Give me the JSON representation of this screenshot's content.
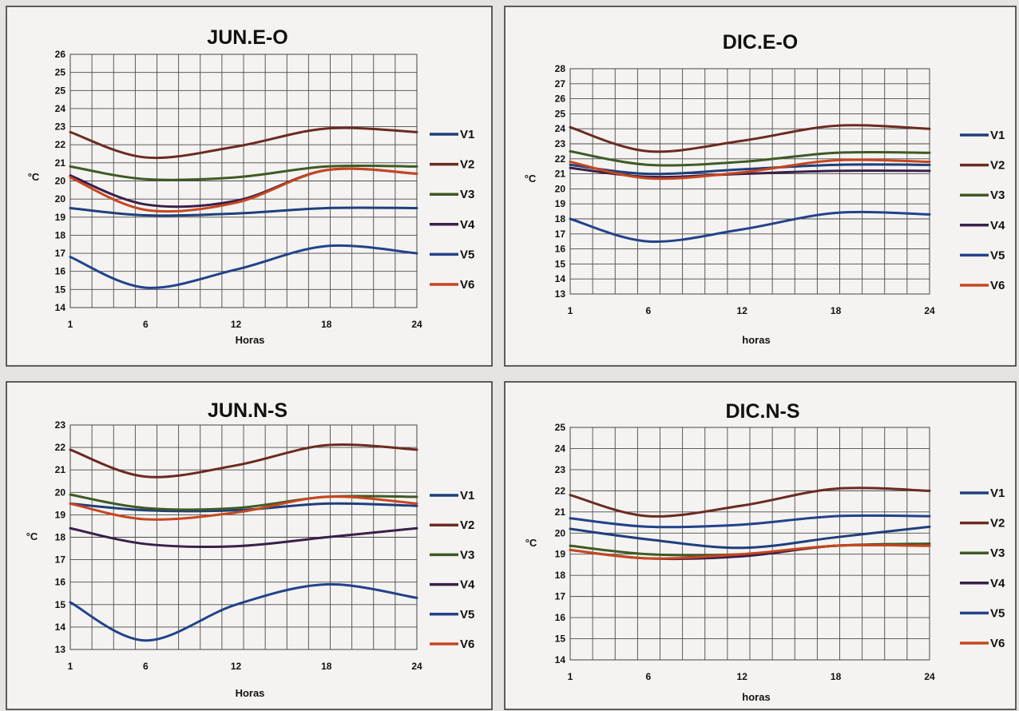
{
  "chart_data": [
    {
      "type": "line",
      "title": "JUN.E-O",
      "xlabel": "Horas",
      "ylabel": "°C",
      "ylim": [
        14,
        26
      ],
      "ytick_labels": [
        "14",
        "15",
        "16",
        "17",
        "18",
        "19",
        "20",
        "20",
        "21",
        "22",
        "23",
        "24",
        "25",
        "25",
        "26"
      ],
      "xlim": [
        1,
        24
      ],
      "xticks": [
        1,
        6,
        12,
        18,
        24
      ],
      "x": [
        1,
        6,
        12,
        18,
        24
      ],
      "grid": true,
      "legend_position": "right",
      "series": [
        {
          "name": "V1",
          "color": "#1f3f7c",
          "values": [
            19.5,
            19.1,
            19.2,
            19.5,
            19.5
          ]
        },
        {
          "name": "V2",
          "color": "#6b2a22",
          "values": [
            22.7,
            21.3,
            21.9,
            22.9,
            22.7
          ]
        },
        {
          "name": "V3",
          "color": "#3f5a24",
          "values": [
            20.8,
            20.1,
            20.2,
            20.8,
            20.8
          ]
        },
        {
          "name": "V4",
          "color": "#3a1f4a",
          "values": [
            20.3,
            19.7,
            19.9,
            20.6,
            20.4
          ]
        },
        {
          "name": "V5",
          "color": "#22428a",
          "values": [
            16.8,
            15.1,
            16.1,
            17.4,
            17.0
          ]
        },
        {
          "name": "V6",
          "color": "#c8461e",
          "values": [
            20.2,
            19.4,
            19.8,
            20.6,
            20.4
          ]
        }
      ]
    },
    {
      "type": "line",
      "title": "DIC.E-O",
      "xlabel": "horas",
      "ylabel": "°C",
      "ylim": [
        13,
        28
      ],
      "ytick_labels": [
        "13",
        "14",
        "15",
        "16",
        "17",
        "18",
        "19",
        "20",
        "21",
        "22",
        "23",
        "24",
        "25",
        "26",
        "27",
        "28"
      ],
      "xlim": [
        1,
        24
      ],
      "xticks": [
        1,
        6,
        12,
        18,
        24
      ],
      "x": [
        1,
        6,
        12,
        18,
        24
      ],
      "grid": true,
      "legend_position": "right",
      "series": [
        {
          "name": "V1",
          "color": "#1f3f7c",
          "values": [
            21.6,
            21.0,
            21.3,
            21.6,
            21.6
          ]
        },
        {
          "name": "V2",
          "color": "#6b2a22",
          "values": [
            24.1,
            22.5,
            23.2,
            24.2,
            24.0
          ]
        },
        {
          "name": "V3",
          "color": "#3f5a24",
          "values": [
            22.5,
            21.6,
            21.8,
            22.4,
            22.4
          ]
        },
        {
          "name": "V4",
          "color": "#3a1f4a",
          "values": [
            21.4,
            20.8,
            21.0,
            21.2,
            21.2
          ]
        },
        {
          "name": "V5",
          "color": "#22428a",
          "values": [
            18.0,
            16.5,
            17.3,
            18.4,
            18.3
          ]
        },
        {
          "name": "V6",
          "color": "#c8461e",
          "values": [
            21.8,
            20.7,
            21.1,
            21.9,
            21.8
          ]
        }
      ]
    },
    {
      "type": "line",
      "title": "JUN.N-S",
      "xlabel": "Horas",
      "ylabel": "°C",
      "ylim": [
        13,
        23
      ],
      "ytick_labels": [
        "13",
        "14",
        "15",
        "16",
        "17",
        "18",
        "19",
        "20",
        "21",
        "22",
        "23"
      ],
      "xlim": [
        1,
        24
      ],
      "xticks": [
        1,
        6,
        12,
        18,
        24
      ],
      "x": [
        1,
        6,
        12,
        18,
        24
      ],
      "grid": true,
      "legend_position": "right",
      "series": [
        {
          "name": "V1",
          "color": "#1f3f7c",
          "values": [
            19.5,
            19.2,
            19.2,
            19.5,
            19.4
          ]
        },
        {
          "name": "V2",
          "color": "#6b2a22",
          "values": [
            21.9,
            20.7,
            21.2,
            22.1,
            21.9
          ]
        },
        {
          "name": "V3",
          "color": "#3f5a24",
          "values": [
            19.9,
            19.3,
            19.3,
            19.8,
            19.8
          ]
        },
        {
          "name": "V4",
          "color": "#3a1f4a",
          "values": [
            18.4,
            17.7,
            17.6,
            18.0,
            18.4
          ]
        },
        {
          "name": "V5",
          "color": "#22428a",
          "values": [
            15.1,
            13.4,
            15.0,
            15.9,
            15.3
          ]
        },
        {
          "name": "V6",
          "color": "#c8461e",
          "values": [
            19.5,
            18.8,
            19.1,
            19.8,
            19.5
          ]
        }
      ]
    },
    {
      "type": "line",
      "title": "DIC.N-S",
      "xlabel": "horas",
      "ylabel": "°C",
      "ylim": [
        14,
        25
      ],
      "ytick_labels": [
        "14",
        "15",
        "16",
        "17",
        "18",
        "19",
        "20",
        "21",
        "22",
        "23",
        "24",
        "25"
      ],
      "xlim": [
        1,
        24
      ],
      "xticks": [
        1,
        6,
        12,
        18,
        24
      ],
      "x": [
        1,
        6,
        12,
        18,
        24
      ],
      "grid": true,
      "legend_position": "right",
      "series": [
        {
          "name": "V1",
          "color": "#1f3f7c",
          "values": [
            20.2,
            19.7,
            19.3,
            19.8,
            20.3
          ]
        },
        {
          "name": "V2",
          "color": "#6b2a22",
          "values": [
            21.8,
            20.8,
            21.3,
            22.1,
            22.0
          ]
        },
        {
          "name": "V3",
          "color": "#3f5a24",
          "values": [
            19.4,
            19.0,
            19.0,
            19.4,
            19.5
          ]
        },
        {
          "name": "V4",
          "color": "#3a1f4a",
          "values": [
            19.2,
            18.8,
            18.9,
            19.4,
            19.4
          ]
        },
        {
          "name": "V5",
          "color": "#22428a",
          "values": [
            20.7,
            20.3,
            20.4,
            20.8,
            20.8
          ]
        },
        {
          "name": "V6",
          "color": "#c8461e",
          "values": [
            19.2,
            18.8,
            19.0,
            19.4,
            19.4
          ]
        }
      ]
    }
  ]
}
